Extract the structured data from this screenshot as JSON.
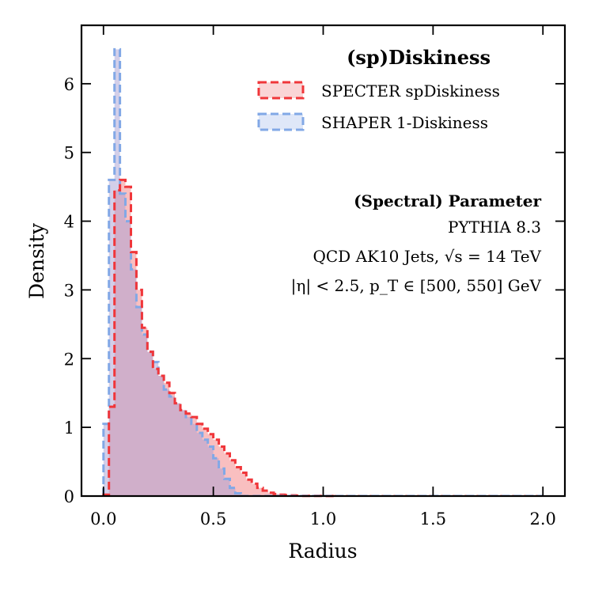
{
  "chart_data": {
    "type": "histogram-step",
    "xlabel": "Radius",
    "ylabel": "Density",
    "xlim": [
      -0.1,
      2.1
    ],
    "ylim": [
      0,
      6.85
    ],
    "x_ticks": [
      0.0,
      0.5,
      1.0,
      1.5,
      2.0
    ],
    "x_tick_labels": [
      "0.0",
      "0.5",
      "1.0",
      "1.5",
      "2.0"
    ],
    "y_ticks": [
      0,
      1,
      2,
      3,
      4,
      5,
      6
    ],
    "y_tick_labels": [
      "0",
      "1",
      "2",
      "3",
      "4",
      "5",
      "6"
    ],
    "bin_edges_start": 0.0,
    "bin_width": 0.025,
    "legend": {
      "title": "(sp)Diskiness",
      "placement": "top-right"
    },
    "annotation": {
      "title": "(Spectral) Parameter",
      "lines": [
        "PYTHIA 8.3",
        "QCD AK10 Jets, √s = 14 TeV",
        "|η| < 2.5, p_T ∈ [500, 550] GeV"
      ],
      "placement": "right"
    },
    "series": [
      {
        "name": "SPECTER spDiskiness",
        "color": "#f0363a",
        "fill": "#f48a8c",
        "values": [
          0.02,
          1.3,
          4.45,
          4.6,
          4.5,
          3.55,
          3.0,
          2.45,
          2.1,
          1.85,
          1.75,
          1.65,
          1.5,
          1.35,
          1.25,
          1.2,
          1.15,
          1.05,
          0.98,
          0.9,
          0.82,
          0.72,
          0.62,
          0.52,
          0.42,
          0.34,
          0.24,
          0.18,
          0.12,
          0.08,
          0.05,
          0.03,
          0.02,
          0.015,
          0.01,
          0.006,
          0.004,
          0.003,
          0.002,
          0.002,
          0.001,
          0.001
        ]
      },
      {
        "name": "SHAPER 1-Diskiness",
        "color": "#82a8e6",
        "fill": "#a8a0d4",
        "values": [
          1.05,
          4.6,
          6.5,
          4.4,
          4.0,
          3.3,
          2.75,
          2.35,
          2.1,
          1.95,
          1.75,
          1.55,
          1.45,
          1.35,
          1.25,
          1.15,
          1.05,
          0.92,
          0.82,
          0.72,
          0.55,
          0.4,
          0.25,
          0.12,
          0.04
        ]
      }
    ]
  }
}
